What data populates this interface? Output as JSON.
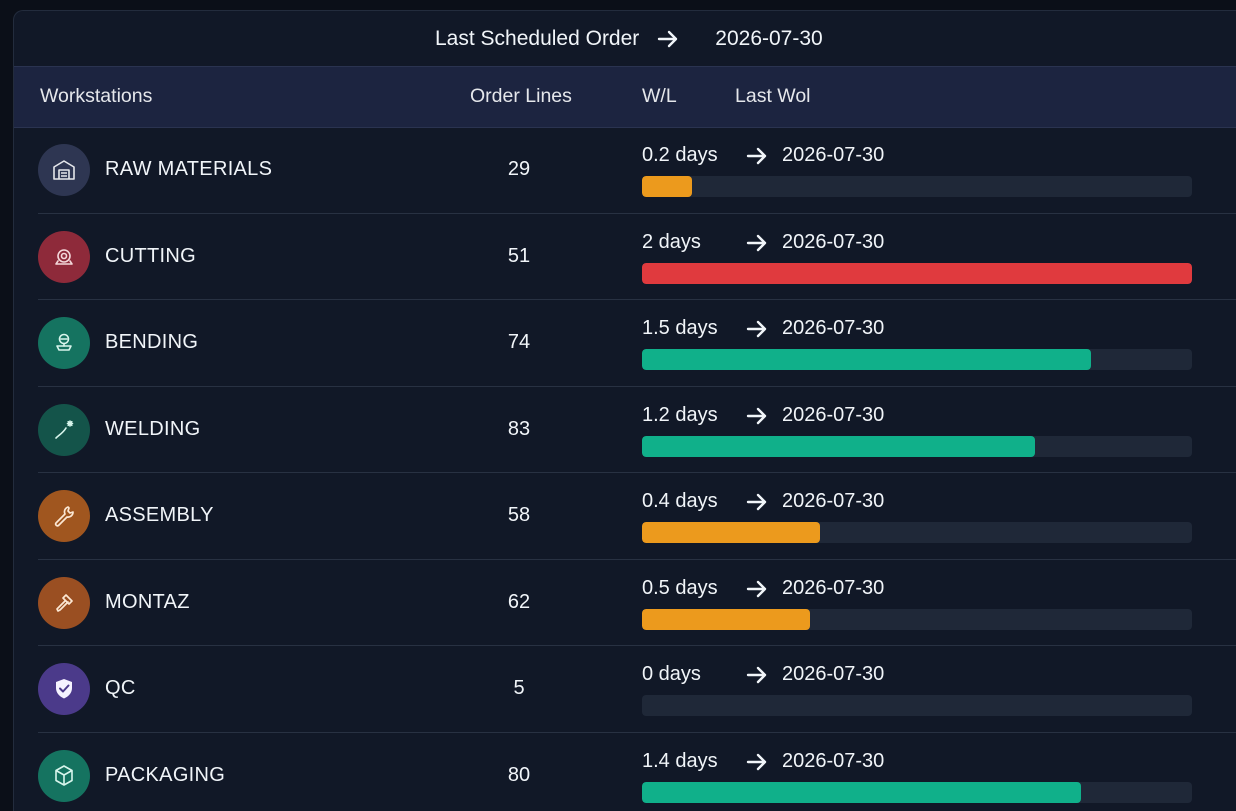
{
  "header": {
    "title": "Last Scheduled Order",
    "date": "2026-07-30"
  },
  "columns": {
    "workstations": "Workstations",
    "order_lines": "Order Lines",
    "wl": "W/L",
    "last_wol": "Last Wol"
  },
  "colors": {
    "orange": "#ec9a1d",
    "red": "#e03a3e",
    "green": "#10b08a",
    "track": "#1f2838"
  },
  "rows": [
    {
      "name": "RAW MATERIALS",
      "order_lines": "29",
      "wl": "0.2 days",
      "date": "2026-07-30",
      "progress": 0.09,
      "bar_color": "#ec9a1d",
      "icon": "warehouse-icon",
      "icon_bg": "#2e3652"
    },
    {
      "name": "CUTTING",
      "order_lines": "51",
      "wl": "2 days",
      "date": "2026-07-30",
      "progress": 1.0,
      "bar_color": "#e03a3e",
      "icon": "saw-blade-icon",
      "icon_bg": "#8e2a3a"
    },
    {
      "name": "BENDING",
      "order_lines": "74",
      "wl": "1.5 days",
      "date": "2026-07-30",
      "progress": 0.817,
      "bar_color": "#10b08a",
      "icon": "bending-press-icon",
      "icon_bg": "#157360"
    },
    {
      "name": "WELDING",
      "order_lines": "83",
      "wl": "1.2 days",
      "date": "2026-07-30",
      "progress": 0.715,
      "bar_color": "#10b08a",
      "icon": "welding-torch-icon",
      "icon_bg": "#14544a"
    },
    {
      "name": "ASSEMBLY",
      "order_lines": "58",
      "wl": "0.4 days",
      "date": "2026-07-30",
      "progress": 0.324,
      "bar_color": "#ec9a1d",
      "icon": "wrench-icon",
      "icon_bg": "#a0561f"
    },
    {
      "name": "MONTAZ",
      "order_lines": "62",
      "wl": "0.5 days",
      "date": "2026-07-30",
      "progress": 0.306,
      "bar_color": "#ec9a1d",
      "icon": "screwdriver-icon",
      "icon_bg": "#9a4f22"
    },
    {
      "name": "QC",
      "order_lines": "5",
      "wl": "0 days",
      "date": "2026-07-30",
      "progress": 0.0,
      "bar_color": "#10b08a",
      "icon": "shield-check-icon",
      "icon_bg": "#4b3a8a"
    },
    {
      "name": "PACKAGING",
      "order_lines": "80",
      "wl": "1.4 days",
      "date": "2026-07-30",
      "progress": 0.798,
      "bar_color": "#10b08a",
      "icon": "box-icon",
      "icon_bg": "#157360"
    }
  ]
}
